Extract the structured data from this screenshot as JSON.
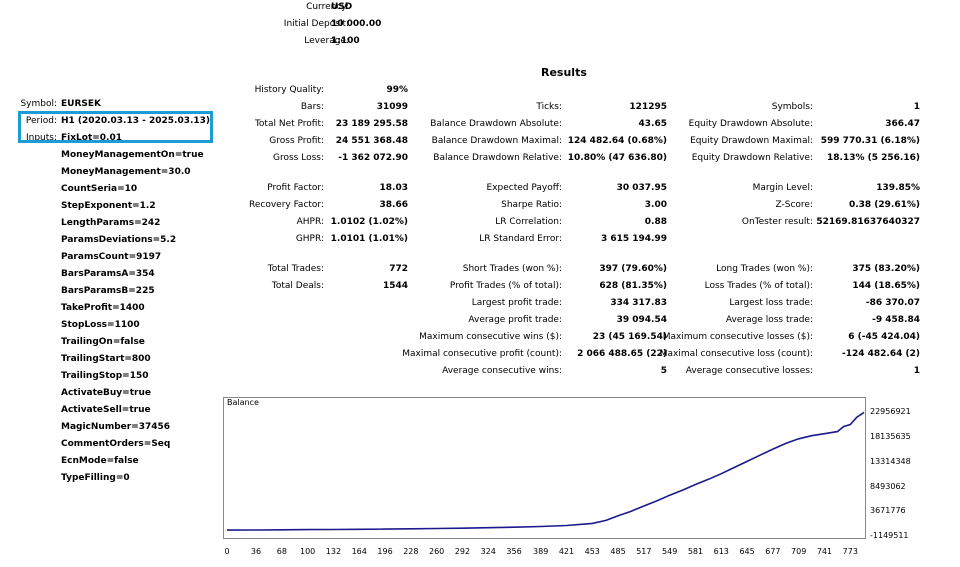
{
  "header": {
    "currency": {
      "label": "Currency:",
      "value": "USD"
    },
    "initial_deposit": {
      "label": "Initial Deposit:",
      "value": "10 000.00"
    },
    "leverage": {
      "label": "Leverage:",
      "value": "1:100"
    }
  },
  "results_title": "Results",
  "settings": {
    "symbol": {
      "label": "Symbol:",
      "value": "EURSEK"
    },
    "period": {
      "label": "Period:",
      "value": "H1 (2020.03.13 - 2025.03.13)"
    },
    "inputs": {
      "label": "Inputs:",
      "value": "FixLot=0.01"
    },
    "params": [
      "MoneyManagementOn=true",
      "MoneyManagement=30.0",
      "CountSeria=10",
      "StepExponent=1.2",
      "LengthParams=242",
      "ParamsDeviations=5.2",
      "ParamsCount=9197",
      "BarsParamsA=354",
      "BarsParamsB=225",
      "TakeProfit=1400",
      "StopLoss=1100",
      "TrailingOn=false",
      "TrailingStart=800",
      "TrailingStop=150",
      "ActivateBuy=true",
      "ActivateSell=true",
      "MagicNumber=37456",
      "CommentOrders=Seq",
      "EcnMode=false",
      "TypeFilling=0"
    ]
  },
  "stats": {
    "col1": [
      {
        "label": "History Quality:",
        "value": "99%"
      },
      {
        "label": "Bars:",
        "value": "31099"
      },
      {
        "label": "Total Net Profit:",
        "value": "23 189 295.58"
      },
      {
        "label": "Gross Profit:",
        "value": "24 551 368.48"
      },
      {
        "label": "Gross Loss:",
        "value": "-1 362 072.90"
      },
      {
        "label": "Profit Factor:",
        "value": "18.03"
      },
      {
        "label": "Recovery Factor:",
        "value": "38.66"
      },
      {
        "label": "AHPR:",
        "value": "1.0102 (1.02%)"
      },
      {
        "label": "GHPR:",
        "value": "1.0101 (1.01%)"
      },
      {
        "label": "Total Trades:",
        "value": "772"
      },
      {
        "label": "Total Deals:",
        "value": "1544"
      }
    ],
    "col2": [
      {
        "label": "Ticks:",
        "value": "121295"
      },
      {
        "label": "Balance Drawdown Absolute:",
        "value": "43.65"
      },
      {
        "label": "Balance Drawdown Maximal:",
        "value": "124 482.64 (0.68%)"
      },
      {
        "label": "Balance Drawdown Relative:",
        "value": "10.80% (47 636.80)"
      },
      {
        "label": "Expected Payoff:",
        "value": "30 037.95"
      },
      {
        "label": "Sharpe Ratio:",
        "value": "3.00"
      },
      {
        "label": "LR Correlation:",
        "value": "0.88"
      },
      {
        "label": "LR Standard Error:",
        "value": "3 615 194.99"
      },
      {
        "label": "Short Trades (won %):",
        "value": "397 (79.60%)"
      },
      {
        "label": "Profit Trades (% of total):",
        "value": "628 (81.35%)"
      },
      {
        "label": "Largest profit trade:",
        "value": "334 317.83"
      },
      {
        "label": "Average profit trade:",
        "value": "39 094.54"
      },
      {
        "label": "Maximum consecutive wins ($):",
        "value": "23 (45 169.54)"
      },
      {
        "label": "Maximal consecutive profit (count):",
        "value": "2 066 488.65 (22)"
      },
      {
        "label": "Average consecutive wins:",
        "value": "5"
      }
    ],
    "col3": [
      {
        "label": "Symbols:",
        "value": "1"
      },
      {
        "label": "Equity Drawdown Absolute:",
        "value": "366.47"
      },
      {
        "label": "Equity Drawdown Maximal:",
        "value": "599 770.31 (6.18%)"
      },
      {
        "label": "Equity Drawdown Relative:",
        "value": "18.13% (5 256.16)"
      },
      {
        "label": "Margin Level:",
        "value": "139.85%"
      },
      {
        "label": "Z-Score:",
        "value": "0.38 (29.61%)"
      },
      {
        "label": "OnTester result:",
        "value": "52169.81637640327"
      },
      {
        "label": "Long Trades (won %):",
        "value": "375 (83.20%)"
      },
      {
        "label": "Loss Trades (% of total):",
        "value": "144 (18.65%)"
      },
      {
        "label": "Largest loss trade:",
        "value": "-86 370.07"
      },
      {
        "label": "Average loss trade:",
        "value": "-9 458.84"
      },
      {
        "label": "Maximum consecutive losses ($):",
        "value": "6 (-45 424.04)"
      },
      {
        "label": "Maximal consecutive loss (count):",
        "value": "-124 482.64 (2)"
      },
      {
        "label": "Average consecutive losses:",
        "value": "1"
      }
    ]
  },
  "chart_data": {
    "type": "line",
    "title": "Balance",
    "x_ticks": [
      "0",
      "36",
      "68",
      "100",
      "132",
      "164",
      "196",
      "228",
      "260",
      "292",
      "324",
      "356",
      "389",
      "421",
      "453",
      "485",
      "517",
      "549",
      "581",
      "613",
      "645",
      "677",
      "709",
      "741",
      "773"
    ],
    "y_ticks": [
      "22956921",
      "18135635",
      "13314348",
      "8493062",
      "3671776",
      "-1149511"
    ],
    "xlim": [
      0,
      790
    ],
    "ylim": [
      -1149511,
      24200000
    ],
    "series": [
      {
        "color": "#1a1a8c",
        "x": [
          0,
          36,
          68,
          100,
          132,
          164,
          196,
          228,
          260,
          292,
          324,
          356,
          389,
          421,
          453,
          470,
          485,
          500,
          517,
          533,
          549,
          565,
          581,
          597,
          613,
          629,
          645,
          661,
          677,
          693,
          709,
          725,
          741,
          757,
          765,
          773,
          781,
          790
        ],
        "y": [
          10000,
          30000,
          60000,
          90000,
          120000,
          160000,
          200000,
          250000,
          310000,
          380000,
          460000,
          560000,
          700000,
          900000,
          1300000,
          1900000,
          2800000,
          3600000,
          4700000,
          5700000,
          6800000,
          7800000,
          8900000,
          9900000,
          11000000,
          12200000,
          13400000,
          14600000,
          15800000,
          16900000,
          17800000,
          18400000,
          18800000,
          19200000,
          20200000,
          20600000,
          22000000,
          22956921
        ]
      }
    ]
  }
}
